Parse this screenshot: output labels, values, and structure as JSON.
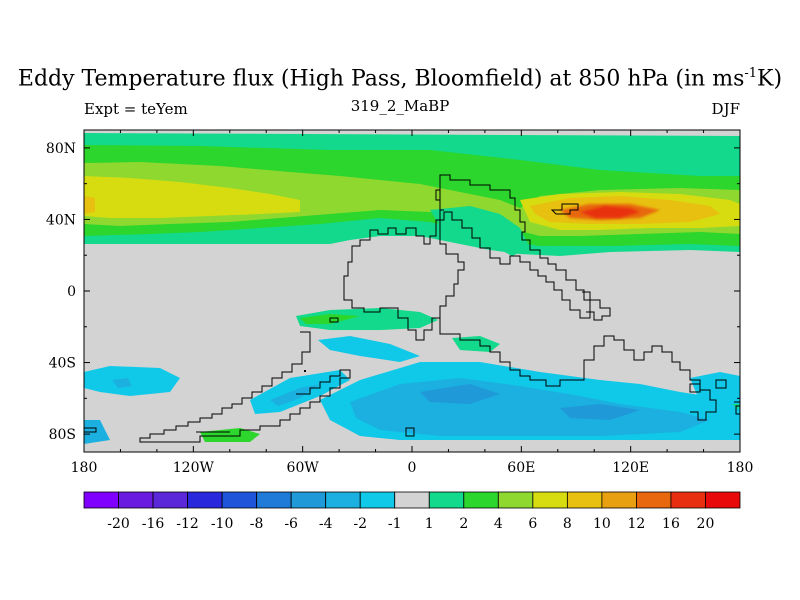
{
  "title": {
    "main": "Eddy Temperature flux (High Pass, Bloomfield) at 850 hPa (in ms",
    "superscript": "-1",
    "tail": "K)"
  },
  "subtitle": {
    "left": "Expt = teYem",
    "center": "319_2_MaBP",
    "right": "DJF"
  },
  "map": {
    "land_color": "#d3d3d3",
    "coastline_color": "#000000",
    "lon_ticks": [
      "180",
      "120W",
      "60W",
      "0",
      "60E",
      "120E",
      "180"
    ],
    "lat_ticks": [
      "80N",
      "40N",
      "0",
      "40S",
      "80S"
    ]
  },
  "colorbar": {
    "labels": [
      "-20",
      "-16",
      "-12",
      "-10",
      "-8",
      "-6",
      "-4",
      "-2",
      "-1",
      "1",
      "2",
      "4",
      "6",
      "8",
      "10",
      "12",
      "16",
      "20"
    ],
    "colors": [
      "#7f00ff",
      "#6a1be0",
      "#5a28d8",
      "#2a28dc",
      "#1f55d8",
      "#1f7ad8",
      "#1f99d8",
      "#1bb0e0",
      "#10c8e8",
      "#d3d3d3",
      "#12d98c",
      "#2cd62c",
      "#8ed830",
      "#d6dc10",
      "#e8c010",
      "#e8a010",
      "#e86810",
      "#e83010",
      "#e80a0a"
    ]
  }
}
